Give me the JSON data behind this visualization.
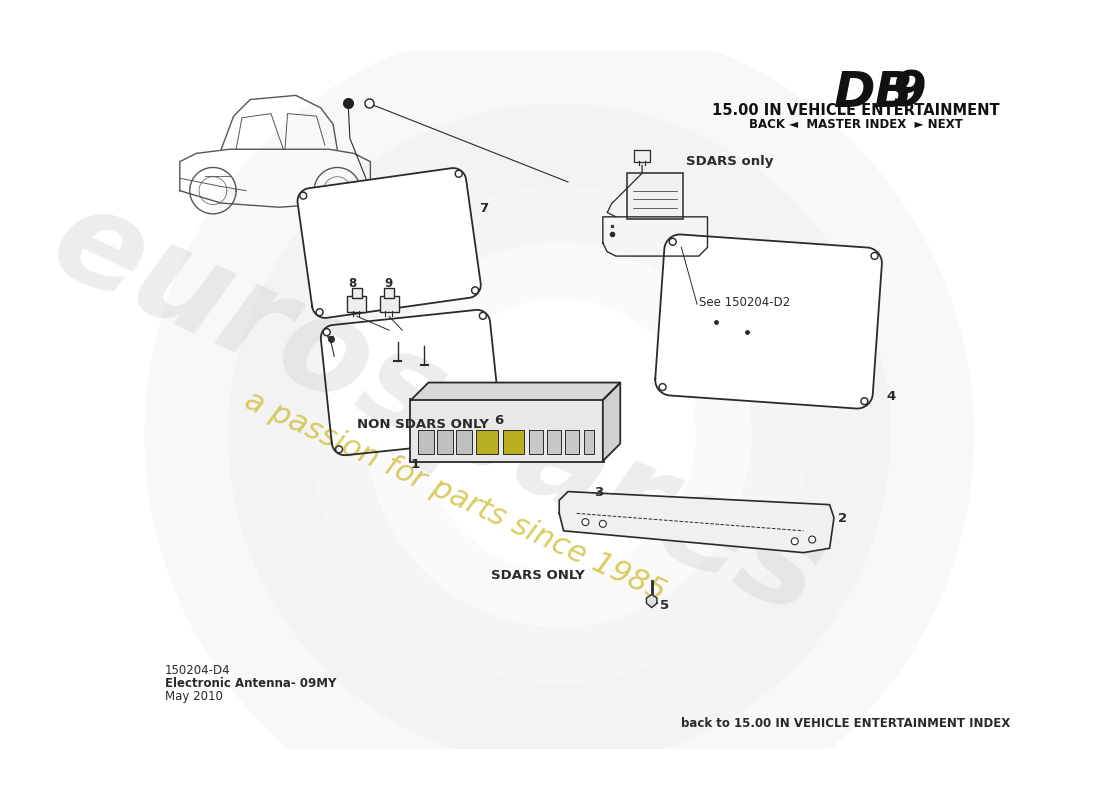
{
  "title_db9": "DB 9",
  "title_section": "15.00 IN VEHICLE ENTERTAINMENT",
  "nav_text": "BACK ◄  MASTER INDEX  ► NEXT",
  "bottom_left_line1": "150204-D4",
  "bottom_left_line2": "Electronic Antenna- 09MY",
  "bottom_left_line3": "May 2010",
  "bottom_right": "back to 15.00 IN VEHICLE ENTERTAINMENT INDEX",
  "label_sdars_only_top": "SDARS only",
  "label_non_sdars": "NON SDARS ONLY",
  "label_sdars_only_bottom": "SDARS ONLY",
  "label_see": "See 150204-D2",
  "watermark_text": "eurospares",
  "watermark_sub": "a passion for parts since 1985",
  "bg_color": "#ffffff",
  "line_color": "#2a2a2a",
  "watermark_color_main": "#d0d0d0",
  "watermark_color_sub": "#c8b820"
}
